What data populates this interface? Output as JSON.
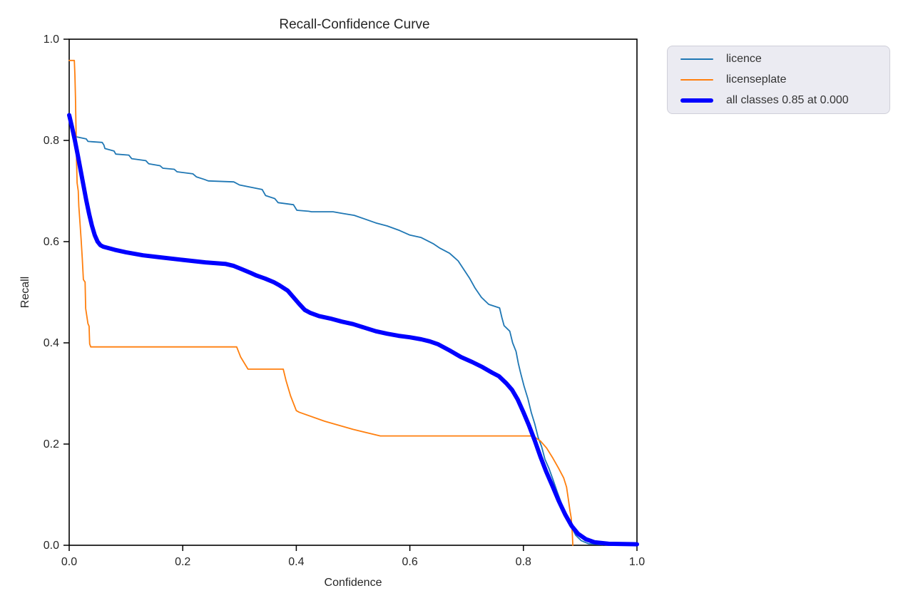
{
  "title": "Recall-Confidence Curve",
  "chart_data": {
    "type": "line",
    "title": "Recall-Confidence Curve",
    "xlabel": "Confidence",
    "ylabel": "Recall",
    "xlim": [
      0.0,
      1.0
    ],
    "ylim": [
      0.0,
      1.0
    ],
    "grid": false,
    "legend_position": "outside-top-right",
    "frame_color": "#000000",
    "background_color": "#ffffff",
    "legend_background": "#ebebf2",
    "xticks": {
      "values": [
        0.0,
        0.2,
        0.4,
        0.6,
        0.8,
        1.0
      ],
      "labels": [
        "0.0",
        "0.2",
        "0.4",
        "0.6",
        "0.8",
        "1.0"
      ]
    },
    "yticks": {
      "values": [
        0.0,
        0.2,
        0.4,
        0.6,
        0.8,
        1.0
      ],
      "labels": [
        "0.0",
        "0.2",
        "0.4",
        "0.6",
        "0.8",
        "1.0"
      ]
    },
    "series": [
      {
        "label": "licence",
        "color": "#1f77b4",
        "line_width": 1.8,
        "points": [
          [
            0.0,
            0.845
          ],
          [
            0.003,
            0.836
          ],
          [
            0.005,
            0.828
          ],
          [
            0.008,
            0.82
          ],
          [
            0.01,
            0.814
          ],
          [
            0.013,
            0.807
          ],
          [
            0.03,
            0.803
          ],
          [
            0.033,
            0.798
          ],
          [
            0.058,
            0.796
          ],
          [
            0.061,
            0.791
          ],
          [
            0.063,
            0.784
          ],
          [
            0.079,
            0.779
          ],
          [
            0.082,
            0.773
          ],
          [
            0.105,
            0.771
          ],
          [
            0.11,
            0.764
          ],
          [
            0.135,
            0.76
          ],
          [
            0.14,
            0.754
          ],
          [
            0.16,
            0.75
          ],
          [
            0.165,
            0.745
          ],
          [
            0.185,
            0.743
          ],
          [
            0.19,
            0.738
          ],
          [
            0.218,
            0.734
          ],
          [
            0.224,
            0.728
          ],
          [
            0.238,
            0.723
          ],
          [
            0.245,
            0.72
          ],
          [
            0.29,
            0.718
          ],
          [
            0.3,
            0.712
          ],
          [
            0.34,
            0.703
          ],
          [
            0.346,
            0.691
          ],
          [
            0.362,
            0.685
          ],
          [
            0.368,
            0.677
          ],
          [
            0.395,
            0.673
          ],
          [
            0.401,
            0.662
          ],
          [
            0.422,
            0.66
          ],
          [
            0.427,
            0.659
          ],
          [
            0.465,
            0.659
          ],
          [
            0.48,
            0.656
          ],
          [
            0.502,
            0.652
          ],
          [
            0.54,
            0.637
          ],
          [
            0.56,
            0.631
          ],
          [
            0.582,
            0.622
          ],
          [
            0.6,
            0.613
          ],
          [
            0.62,
            0.608
          ],
          [
            0.641,
            0.596
          ],
          [
            0.653,
            0.587
          ],
          [
            0.67,
            0.577
          ],
          [
            0.685,
            0.562
          ],
          [
            0.695,
            0.545
          ],
          [
            0.705,
            0.528
          ],
          [
            0.715,
            0.508
          ],
          [
            0.726,
            0.49
          ],
          [
            0.739,
            0.476
          ],
          [
            0.758,
            0.469
          ],
          [
            0.762,
            0.45
          ],
          [
            0.766,
            0.434
          ],
          [
            0.776,
            0.423
          ],
          [
            0.781,
            0.4
          ],
          [
            0.787,
            0.383
          ],
          [
            0.791,
            0.36
          ],
          [
            0.795,
            0.341
          ],
          [
            0.801,
            0.315
          ],
          [
            0.808,
            0.289
          ],
          [
            0.814,
            0.262
          ],
          [
            0.82,
            0.24
          ],
          [
            0.826,
            0.213
          ],
          [
            0.832,
            0.195
          ],
          [
            0.838,
            0.17
          ],
          [
            0.845,
            0.152
          ],
          [
            0.852,
            0.13
          ],
          [
            0.86,
            0.104
          ],
          [
            0.868,
            0.08
          ],
          [
            0.876,
            0.058
          ],
          [
            0.884,
            0.038
          ],
          [
            0.892,
            0.02
          ],
          [
            0.902,
            0.009
          ],
          [
            0.915,
            0.003
          ],
          [
            0.94,
            0.001
          ]
        ]
      },
      {
        "label": "licenseplate",
        "color": "#ff7f0e",
        "line_width": 1.8,
        "points": [
          [
            0.0,
            0.958
          ],
          [
            0.009,
            0.958
          ],
          [
            0.01,
            0.93
          ],
          [
            0.011,
            0.885
          ],
          [
            0.012,
            0.82
          ],
          [
            0.013,
            0.76
          ],
          [
            0.014,
            0.716
          ],
          [
            0.016,
            0.7
          ],
          [
            0.017,
            0.67
          ],
          [
            0.019,
            0.638
          ],
          [
            0.021,
            0.605
          ],
          [
            0.023,
            0.568
          ],
          [
            0.025,
            0.525
          ],
          [
            0.028,
            0.52
          ],
          [
            0.029,
            0.468
          ],
          [
            0.033,
            0.438
          ],
          [
            0.035,
            0.433
          ],
          [
            0.036,
            0.398
          ],
          [
            0.038,
            0.392
          ],
          [
            0.295,
            0.392
          ],
          [
            0.302,
            0.372
          ],
          [
            0.315,
            0.348
          ],
          [
            0.377,
            0.348
          ],
          [
            0.382,
            0.325
          ],
          [
            0.39,
            0.295
          ],
          [
            0.4,
            0.266
          ],
          [
            0.405,
            0.263
          ],
          [
            0.45,
            0.245
          ],
          [
            0.5,
            0.229
          ],
          [
            0.548,
            0.216
          ],
          [
            0.65,
            0.216
          ],
          [
            0.75,
            0.216
          ],
          [
            0.817,
            0.216
          ],
          [
            0.83,
            0.206
          ],
          [
            0.841,
            0.192
          ],
          [
            0.852,
            0.172
          ],
          [
            0.862,
            0.152
          ],
          [
            0.871,
            0.133
          ],
          [
            0.876,
            0.115
          ],
          [
            0.879,
            0.092
          ],
          [
            0.882,
            0.068
          ],
          [
            0.884,
            0.055
          ],
          [
            0.886,
            0.025
          ],
          [
            0.887,
            0.0
          ]
        ]
      },
      {
        "label": "all classes 0.85 at 0.000",
        "color": "#0000ff",
        "line_width": 6,
        "points": [
          [
            0.0,
            0.85
          ],
          [
            0.005,
            0.826
          ],
          [
            0.01,
            0.8
          ],
          [
            0.015,
            0.772
          ],
          [
            0.02,
            0.742
          ],
          [
            0.025,
            0.712
          ],
          [
            0.03,
            0.682
          ],
          [
            0.035,
            0.655
          ],
          [
            0.04,
            0.632
          ],
          [
            0.045,
            0.613
          ],
          [
            0.05,
            0.6
          ],
          [
            0.055,
            0.593
          ],
          [
            0.06,
            0.59
          ],
          [
            0.08,
            0.584
          ],
          [
            0.1,
            0.579
          ],
          [
            0.13,
            0.573
          ],
          [
            0.16,
            0.569
          ],
          [
            0.2,
            0.564
          ],
          [
            0.24,
            0.559
          ],
          [
            0.275,
            0.556
          ],
          [
            0.29,
            0.552
          ],
          [
            0.305,
            0.545
          ],
          [
            0.32,
            0.538
          ],
          [
            0.33,
            0.533
          ],
          [
            0.345,
            0.527
          ],
          [
            0.36,
            0.52
          ],
          [
            0.37,
            0.514
          ],
          [
            0.385,
            0.503
          ],
          [
            0.395,
            0.49
          ],
          [
            0.405,
            0.477
          ],
          [
            0.415,
            0.465
          ],
          [
            0.425,
            0.459
          ],
          [
            0.44,
            0.453
          ],
          [
            0.46,
            0.448
          ],
          [
            0.48,
            0.442
          ],
          [
            0.5,
            0.437
          ],
          [
            0.52,
            0.43
          ],
          [
            0.54,
            0.423
          ],
          [
            0.56,
            0.418
          ],
          [
            0.58,
            0.414
          ],
          [
            0.6,
            0.411
          ],
          [
            0.62,
            0.407
          ],
          [
            0.635,
            0.403
          ],
          [
            0.65,
            0.397
          ],
          [
            0.67,
            0.385
          ],
          [
            0.69,
            0.372
          ],
          [
            0.71,
            0.362
          ],
          [
            0.728,
            0.352
          ],
          [
            0.745,
            0.341
          ],
          [
            0.757,
            0.334
          ],
          [
            0.77,
            0.32
          ],
          [
            0.78,
            0.307
          ],
          [
            0.79,
            0.288
          ],
          [
            0.8,
            0.263
          ],
          [
            0.81,
            0.236
          ],
          [
            0.82,
            0.207
          ],
          [
            0.83,
            0.175
          ],
          [
            0.84,
            0.146
          ],
          [
            0.852,
            0.115
          ],
          [
            0.862,
            0.088
          ],
          [
            0.874,
            0.06
          ],
          [
            0.885,
            0.038
          ],
          [
            0.896,
            0.023
          ],
          [
            0.91,
            0.012
          ],
          [
            0.925,
            0.006
          ],
          [
            0.95,
            0.003
          ],
          [
            1.0,
            0.002
          ]
        ]
      }
    ]
  }
}
